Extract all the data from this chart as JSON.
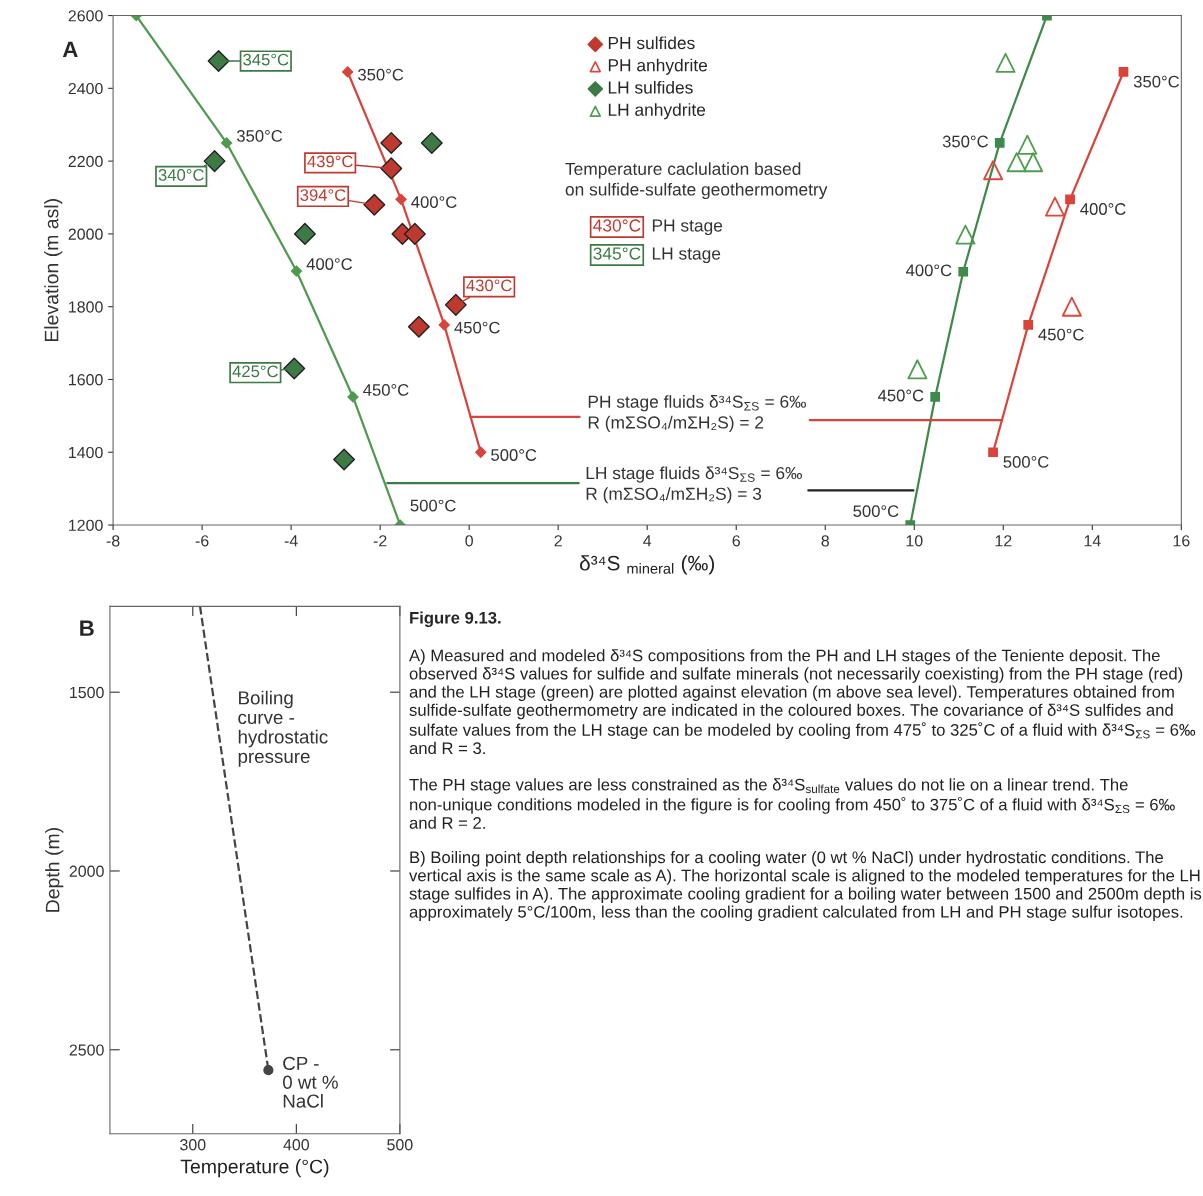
{
  "chart_data": [
    {
      "type": "scatter",
      "title": "A",
      "xlabel": "δ³⁴S $_{mineral}$ (‰)",
      "ylabel": "Elevation (m asl)",
      "xlim": [
        -8,
        16
      ],
      "xticks": [
        -8,
        -6,
        -4,
        -2,
        0,
        2,
        4,
        6,
        8,
        10,
        12,
        14,
        16
      ],
      "ylim": [
        1200,
        2600
      ],
      "yticks": [
        1200,
        1400,
        1600,
        1800,
        2000,
        2200,
        2400,
        2600
      ],
      "grid": false,
      "legend": "top",
      "series": [
        {
          "name": "PH sulfides",
          "color": "#c0392e",
          "marker": "diamond",
          "x": [
            -1.75,
            -1.75,
            -2.13,
            -1.5,
            -1.22,
            -0.3,
            -1.13
          ],
          "values": [
            2250,
            2180,
            2080,
            2000,
            2000,
            1805,
            1745
          ]
        },
        {
          "name": "PH anhydrite",
          "color": "#e0463c",
          "marker": "triangle",
          "x": [
            11.77,
            13.16,
            13.54
          ],
          "values": [
            2175,
            2075,
            1800
          ]
        },
        {
          "name": "LH sulfides",
          "color": "#3d7a45",
          "marker": "diamond",
          "x": [
            -5.63,
            -5.72,
            -3.69,
            -0.84,
            -3.93,
            -2.81
          ],
          "values": [
            2475,
            2200,
            2000,
            2250,
            1630,
            1380
          ]
        },
        {
          "name": "LH anhydrite",
          "color": "#4f9e4f",
          "marker": "triangle",
          "x": [
            12.05,
            12.54,
            12.3,
            12.67,
            11.15,
            10.07
          ],
          "values": [
            2470,
            2245,
            2197,
            2197,
            1998,
            1628
          ]
        },
        {
          "type": "line",
          "color": "#d9433a",
          "marker": "diamond",
          "x": [
            -2.73,
            -1.53,
            -0.56,
            0.26
          ],
          "values": [
            2445,
            2095,
            1750,
            1400
          ]
        },
        {
          "type": "line",
          "color": "#d9433a",
          "marker": "square",
          "x": [
            14.7,
            13.5,
            12.56,
            11.77
          ],
          "values": [
            2445,
            2095,
            1750,
            1400
          ]
        },
        {
          "type": "line",
          "color": "#4f9a4f",
          "marker": "diamond",
          "x": [
            -7.48,
            -5.45,
            -3.88,
            -2.61,
            -1.55
          ],
          "values": [
            2600,
            2250,
            1898,
            1552,
            1200
          ]
        },
        {
          "type": "line",
          "color": "#3f8a4a",
          "marker": "square",
          "x": [
            12.98,
            11.92,
            11.1,
            10.47,
            9.91
          ],
          "values": [
            2600,
            2250,
            1896,
            1552,
            1200
          ]
        },
        {
          "type": "line",
          "color": "#d9433a",
          "marker": "none",
          "x": [
            0.03,
            2.48
          ],
          "values": [
            1497,
            1497
          ]
        },
        {
          "type": "line",
          "color": "#d9433a",
          "marker": "none",
          "x": [
            7.65,
            11.97
          ],
          "values": [
            1488,
            1488
          ]
        },
        {
          "type": "line",
          "color": "#3f7a45",
          "marker": "none",
          "x": [
            -1.84,
            2.46
          ],
          "values": [
            1315,
            1315
          ]
        },
        {
          "type": "line",
          "color": "#222222",
          "marker": "none",
          "x": [
            7.62,
            9.98
          ],
          "values": [
            1295,
            1295
          ]
        }
      ],
      "annotations": [
        "Temperature caclulation based\non sulfide-sulfate geothermometry",
        "430°C",
        "PH stage",
        "345°C",
        "LH stage",
        "PH stage fluids δ³⁴S$_{ΣS}$ = 6‰\nR (mΣSO₄/mΣH₂S) = 2",
        "LH stage fluids δ³⁴S$_{ΣS}$ = 6‰\nR (mΣSO₄/mΣH₂S) = 3",
        {
          "text": "439°C",
          "x": -1.75,
          "y": 2180
        },
        {
          "text": "394°C",
          "x": -2.13,
          "y": 2080
        },
        {
          "text": "430°C",
          "x": -0.3,
          "y": 1805
        },
        {
          "text": "345°C",
          "x": -5.63,
          "y": 2475
        },
        {
          "text": "340°C",
          "x": -5.72,
          "y": 2200
        },
        {
          "text": "425°C",
          "x": -3.93,
          "y": 1630
        },
        {
          "text": "350°C",
          "x": -2.73,
          "y": 2445
        },
        {
          "text": "400°C",
          "x": -1.53,
          "y": 2095
        },
        {
          "text": "450°C",
          "x": -0.56,
          "y": 1750
        },
        {
          "text": "500°C",
          "x": 0.26,
          "y": 1400
        },
        {
          "text": "350°C",
          "x": 14.7,
          "y": 2445
        },
        {
          "text": "400°C",
          "x": 13.5,
          "y": 2095
        },
        {
          "text": "450°C",
          "x": 12.56,
          "y": 1750
        },
        {
          "text": "500°C",
          "x": 11.77,
          "y": 1400
        },
        {
          "text": "350°C",
          "x": -5.45,
          "y": 2250
        },
        {
          "text": "400°C",
          "x": -3.88,
          "y": 1898
        },
        {
          "text": "450°C",
          "x": -2.61,
          "y": 1552
        },
        {
          "text": "500°C",
          "x": -1.55,
          "y": 1200
        },
        {
          "text": "350°C",
          "x": 11.92,
          "y": 2250
        },
        {
          "text": "400°C",
          "x": 11.1,
          "y": 1896
        },
        {
          "text": "450°C",
          "x": 10.47,
          "y": 1552
        },
        {
          "text": "500°C",
          "x": 9.91,
          "y": 1200
        }
      ]
    },
    {
      "type": "line",
      "title": "B",
      "xlabel": "Temperature (°C)",
      "ylabel": "Depth (m)",
      "xlim": [
        220,
        500
      ],
      "xticks": [
        300,
        400,
        500
      ],
      "ylim": [
        2735,
        1260
      ],
      "yticks": [
        1500,
        2000,
        2500
      ],
      "grid": false,
      "series": [
        {
          "color": "#444444",
          "line_style": "dashed",
          "marker": "none",
          "x": [
            307,
            373
          ],
          "values": [
            1260,
            2557
          ]
        },
        {
          "type": "scatter",
          "color": "#444444",
          "marker": "circle",
          "x": [
            373
          ],
          "values": [
            2557
          ]
        }
      ],
      "annotations": [
        "Boiling\ncurve -\nhydrostatic\npressure",
        {
          "text": "CP -\n0 wt %\nNaCl",
          "x": 373,
          "y": 2557
        }
      ]
    },
    {
      "type": "other",
      "title": "Figure 9.13.",
      "annotations": [
        "A) Measured and modeled δ³⁴S compositions from the PH and LH stages of the Teniente deposit. The observed δ³⁴S values for sulfide and sulfate minerals (not necessarily coexisting) from the PH stage (red) and the LH stage (green) are plotted against elevation (m above sea level). Temperatures obtained from sulfide-sulfate geothermometry are indicated in the coloured boxes. The covariance of δ³⁴S sulfides and sulfate values from the LH stage can be modeled by cooling from 475˚ to 325˚C of a fluid with δ³⁴S$_{ΣS}$ = 6‰ and R = 3.",
        "The PH stage values are less constrained as the δ³⁴S$_{sulfate}$ values do not lie on a linear trend. The non-unique conditions modeled in the figure is for cooling from 450˚ to 375˚C of a fluid with δ³⁴S$_{ΣS}$ = 6‰ and R = 2.",
        "B) Boiling point depth relationships for a cooling water (0 wt % NaCl) under hydrostatic conditions. The vertical axis is the same scale as A). The horizontal scale is aligned to the modeled temperatures for the LH stage sulfides in A). The approximate cooling gradient for a boiling water between 1500 and 2500m depth is approximately 5°C/100m, less than the cooling gradient calculated from LH and PH stage sulfur isotopes."
      ]
    }
  ]
}
